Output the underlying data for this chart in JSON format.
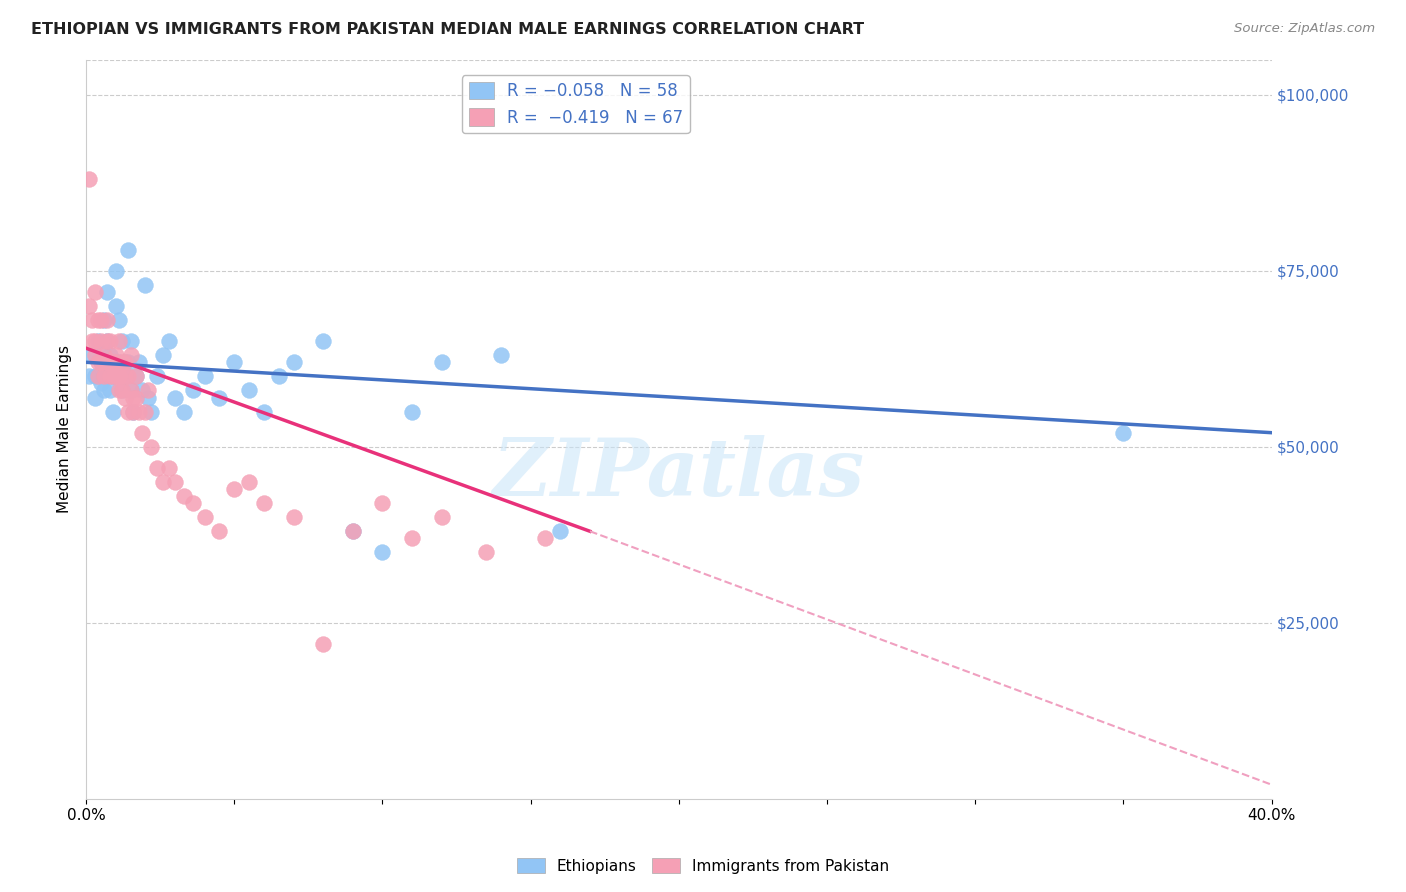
{
  "title": "ETHIOPIAN VS IMMIGRANTS FROM PAKISTAN MEDIAN MALE EARNINGS CORRELATION CHART",
  "source": "Source: ZipAtlas.com",
  "ylabel": "Median Male Earnings",
  "yticks": [
    0,
    25000,
    50000,
    75000,
    100000
  ],
  "ytick_labels": [
    "",
    "$25,000",
    "$50,000",
    "$75,000",
    "$100,000"
  ],
  "xmin": 0.0,
  "xmax": 0.4,
  "ymin": 0,
  "ymax": 105000,
  "legend_label1": "Ethiopians",
  "legend_label2": "Immigrants from Pakistan",
  "color_blue": "#92C5F5",
  "color_pink": "#F5A0B5",
  "line_blue": "#4472C4",
  "line_pink": "#E8317A",
  "line_dashed_pink": "#F0A0C0",
  "watermark": "ZIPatlas",
  "title_color": "#222222",
  "axis_color": "#4472C4",
  "ethiopians_x": [
    0.001,
    0.002,
    0.003,
    0.003,
    0.004,
    0.004,
    0.005,
    0.005,
    0.006,
    0.006,
    0.006,
    0.007,
    0.007,
    0.007,
    0.008,
    0.008,
    0.009,
    0.009,
    0.01,
    0.01,
    0.011,
    0.011,
    0.012,
    0.012,
    0.013,
    0.013,
    0.014,
    0.014,
    0.015,
    0.015,
    0.016,
    0.017,
    0.018,
    0.019,
    0.02,
    0.021,
    0.022,
    0.024,
    0.026,
    0.028,
    0.03,
    0.033,
    0.036,
    0.04,
    0.045,
    0.05,
    0.055,
    0.06,
    0.065,
    0.07,
    0.08,
    0.09,
    0.1,
    0.11,
    0.12,
    0.14,
    0.16,
    0.35
  ],
  "ethiopians_y": [
    60000,
    63000,
    57000,
    60000,
    65000,
    60000,
    62000,
    59000,
    63000,
    68000,
    58000,
    72000,
    65000,
    60000,
    63000,
    58000,
    55000,
    60000,
    75000,
    70000,
    68000,
    62000,
    58000,
    65000,
    60000,
    62000,
    78000,
    62000,
    58000,
    65000,
    55000,
    60000,
    62000,
    58000,
    73000,
    57000,
    55000,
    60000,
    63000,
    65000,
    57000,
    55000,
    58000,
    60000,
    57000,
    62000,
    58000,
    55000,
    60000,
    62000,
    65000,
    38000,
    35000,
    55000,
    62000,
    63000,
    38000,
    52000
  ],
  "pakistan_x": [
    0.001,
    0.001,
    0.002,
    0.002,
    0.003,
    0.003,
    0.003,
    0.004,
    0.004,
    0.004,
    0.005,
    0.005,
    0.005,
    0.006,
    0.006,
    0.006,
    0.007,
    0.007,
    0.007,
    0.008,
    0.008,
    0.008,
    0.009,
    0.009,
    0.01,
    0.01,
    0.01,
    0.011,
    0.011,
    0.011,
    0.012,
    0.012,
    0.013,
    0.013,
    0.013,
    0.014,
    0.014,
    0.015,
    0.015,
    0.016,
    0.016,
    0.017,
    0.017,
    0.018,
    0.019,
    0.02,
    0.021,
    0.022,
    0.024,
    0.026,
    0.028,
    0.03,
    0.033,
    0.036,
    0.04,
    0.045,
    0.05,
    0.055,
    0.06,
    0.07,
    0.08,
    0.09,
    0.1,
    0.11,
    0.12,
    0.135,
    0.155
  ],
  "pakistan_y": [
    88000,
    70000,
    68000,
    65000,
    63000,
    72000,
    65000,
    68000,
    62000,
    60000,
    65000,
    62000,
    68000,
    63000,
    62000,
    60000,
    65000,
    62000,
    68000,
    62000,
    60000,
    65000,
    62000,
    60000,
    63000,
    60000,
    62000,
    65000,
    58000,
    60000,
    62000,
    58000,
    62000,
    60000,
    57000,
    55000,
    60000,
    63000,
    58000,
    57000,
    55000,
    60000,
    57000,
    55000,
    52000,
    55000,
    58000,
    50000,
    47000,
    45000,
    47000,
    45000,
    43000,
    42000,
    40000,
    38000,
    44000,
    45000,
    42000,
    40000,
    22000,
    38000,
    42000,
    37000,
    40000,
    35000,
    37000
  ],
  "eth_line_x0": 0.0,
  "eth_line_x1": 0.4,
  "eth_line_y0": 62000,
  "eth_line_y1": 52000,
  "pak_line_solid_x0": 0.0,
  "pak_line_solid_x1": 0.17,
  "pak_line_solid_y0": 64000,
  "pak_line_solid_y1": 38000,
  "pak_line_dash_x0": 0.17,
  "pak_line_dash_x1": 0.4,
  "pak_line_dash_y0": 38000,
  "pak_line_dash_y1": 2000
}
